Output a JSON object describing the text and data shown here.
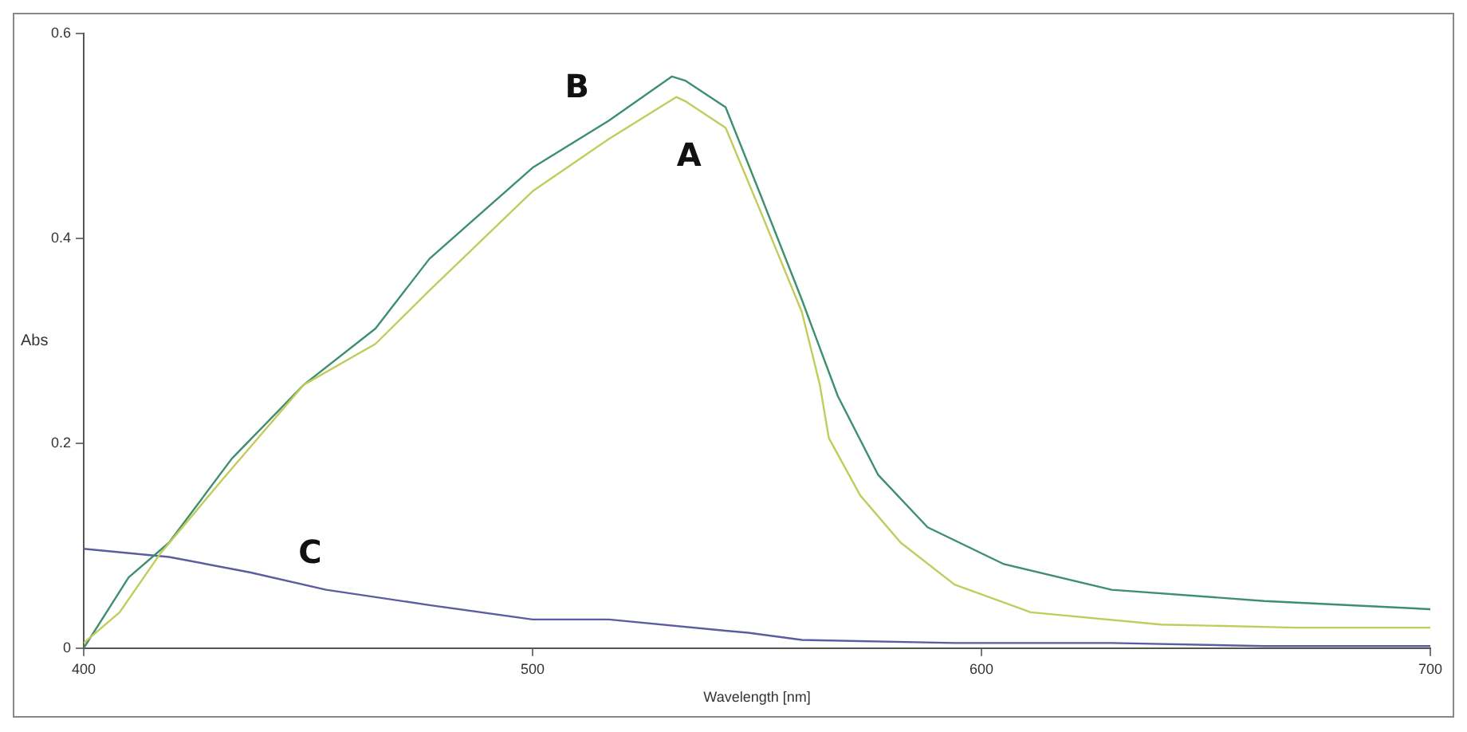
{
  "chart_data": {
    "type": "line",
    "xlabel": "Wavelength [nm]",
    "ylabel": "Abs",
    "xlim": [
      400,
      700
    ],
    "xticks": [
      400,
      500,
      600,
      700
    ],
    "ylim": [
      0,
      0.6
    ],
    "yticks": [
      0,
      0.2,
      0.4,
      0.6
    ],
    "grid": false,
    "legend": false,
    "marker": "none",
    "line_style": "solid",
    "series": [
      {
        "name": "A",
        "color": "#c2cc5c",
        "x": [
          400,
          408,
          417,
          431,
          449,
          465,
          477,
          500,
          517,
          532,
          534,
          543,
          551,
          560,
          564,
          566,
          573,
          582,
          594,
          611,
          640,
          670,
          700
        ],
        "values": [
          0.005,
          0.035,
          0.092,
          0.165,
          0.257,
          0.297,
          0.349,
          0.446,
          0.497,
          0.538,
          0.534,
          0.508,
          0.424,
          0.328,
          0.257,
          0.205,
          0.149,
          0.103,
          0.062,
          0.035,
          0.023,
          0.02,
          0.02
        ]
      },
      {
        "name": "B",
        "color": "#3d8f6e",
        "x": [
          400,
          410,
          419,
          433,
          449,
          465,
          477,
          500,
          517,
          531,
          534,
          543,
          551,
          560,
          568,
          577,
          588,
          605,
          629,
          663,
          700
        ],
        "values": [
          0,
          0.069,
          0.103,
          0.185,
          0.257,
          0.312,
          0.38,
          0.469,
          0.515,
          0.558,
          0.554,
          0.528,
          0.44,
          0.34,
          0.246,
          0.169,
          0.118,
          0.082,
          0.057,
          0.046,
          0.038
        ]
      },
      {
        "name": "C",
        "color": "#5c5ca0",
        "x": [
          400,
          419,
          437,
          454,
          477,
          500,
          517,
          543,
          548,
          560,
          594,
          629,
          663,
          700
        ],
        "values": [
          0.097,
          0.089,
          0.074,
          0.057,
          0.042,
          0.028,
          0.028,
          0.017,
          0.015,
          0.008,
          0.005,
          0.005,
          0.002,
          0.002
        ]
      }
    ]
  }
}
